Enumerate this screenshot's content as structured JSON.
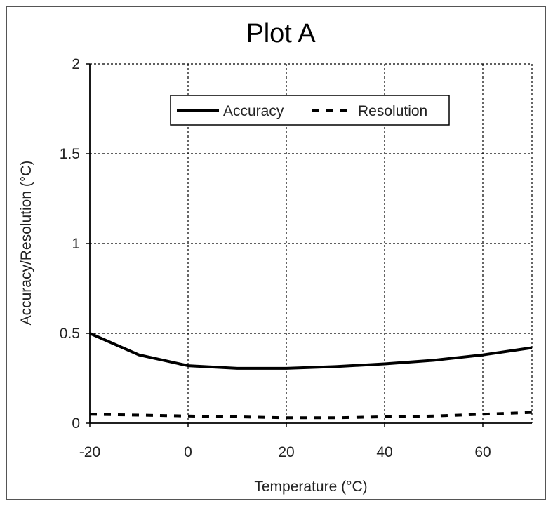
{
  "chart_data": {
    "type": "line",
    "title": "Plot A",
    "xlabel": "Temperature (°C)",
    "ylabel": "Accuracy/Resolution (°C)",
    "xlim": [
      -20,
      70
    ],
    "ylim": [
      0,
      2
    ],
    "x_ticks": [
      "-20",
      "0",
      "20",
      "40",
      "60"
    ],
    "y_ticks": [
      "0",
      "0.5",
      "1",
      "1.5",
      "2"
    ],
    "grid": true,
    "legend_position": "top-right",
    "series": [
      {
        "name": "Accuracy",
        "style": "solid",
        "color": "#000000",
        "x": [
          -20,
          -10,
          0,
          10,
          20,
          30,
          40,
          50,
          60,
          70
        ],
        "y": [
          0.5,
          0.38,
          0.32,
          0.305,
          0.305,
          0.315,
          0.33,
          0.35,
          0.38,
          0.42
        ]
      },
      {
        "name": "Resolution",
        "style": "dashed",
        "color": "#000000",
        "x": [
          -20,
          -10,
          0,
          10,
          20,
          30,
          40,
          50,
          60,
          70
        ],
        "y": [
          0.05,
          0.045,
          0.04,
          0.035,
          0.03,
          0.03,
          0.035,
          0.04,
          0.05,
          0.06
        ]
      }
    ]
  }
}
